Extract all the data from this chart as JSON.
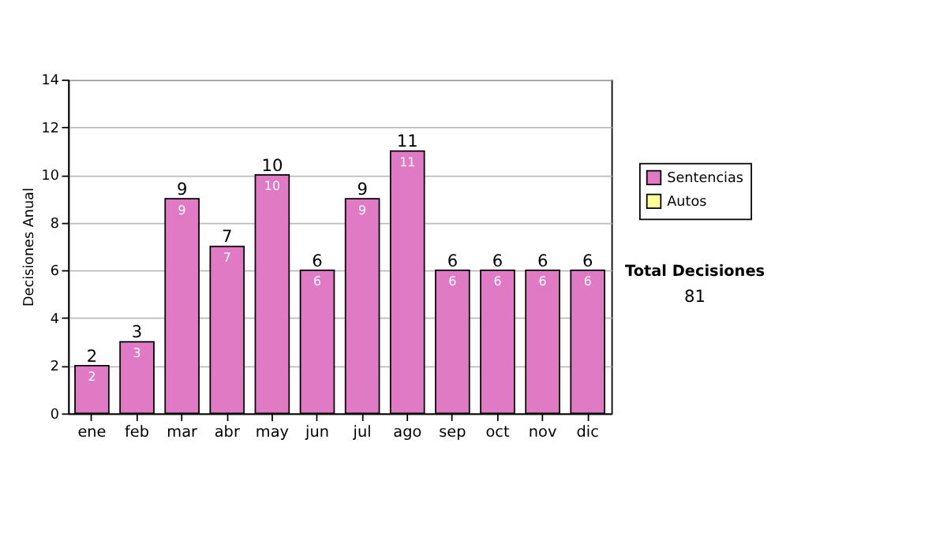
{
  "chart_data": {
    "type": "bar",
    "stacked": true,
    "ylabel": "Decisiones Anual",
    "categories": [
      "ene",
      "feb",
      "mar",
      "abr",
      "may",
      "jun",
      "jul",
      "ago",
      "sep",
      "oct",
      "nov",
      "dic"
    ],
    "series": [
      {
        "name": "Sentencias",
        "color": "#e07ac4",
        "values": [
          2,
          3,
          9,
          7,
          10,
          6,
          9,
          11,
          6,
          6,
          6,
          6
        ]
      },
      {
        "name": "Autos",
        "color": "#ffff99",
        "values": [
          null,
          null,
          null,
          null,
          null,
          null,
          null,
          null,
          null,
          null,
          null,
          null
        ]
      }
    ],
    "totals": [
      "2",
      "3",
      "9",
      "7",
      "10",
      "6",
      "9",
      "11",
      "6",
      "6",
      "6",
      "6"
    ],
    "data_labels": true,
    "ylim": [
      0,
      14
    ],
    "yticks": [
      0,
      2,
      4,
      6,
      8,
      10,
      12,
      14
    ],
    "grid": "y",
    "legend": "right",
    "annotations": [
      "Total Decisiones",
      "81"
    ]
  }
}
